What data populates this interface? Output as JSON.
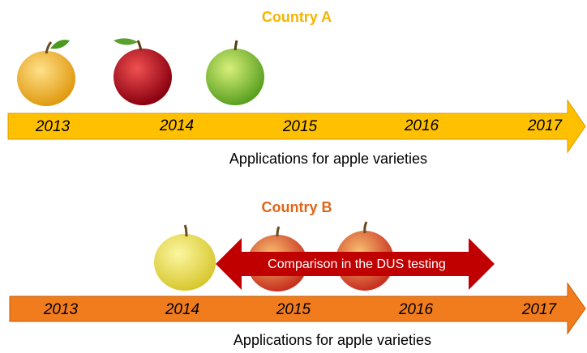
{
  "panels": [
    {
      "title": "Country A",
      "years": [
        "2013",
        "2014",
        "2015",
        "2016",
        "2017"
      ],
      "caption": "Applications for apple varieties"
    },
    {
      "title": "Country B",
      "years": [
        "2013",
        "2014",
        "2015",
        "2016",
        "2017"
      ],
      "caption": "Applications for apple varieties",
      "comparison": "Comparison in the DUS testing"
    }
  ]
}
